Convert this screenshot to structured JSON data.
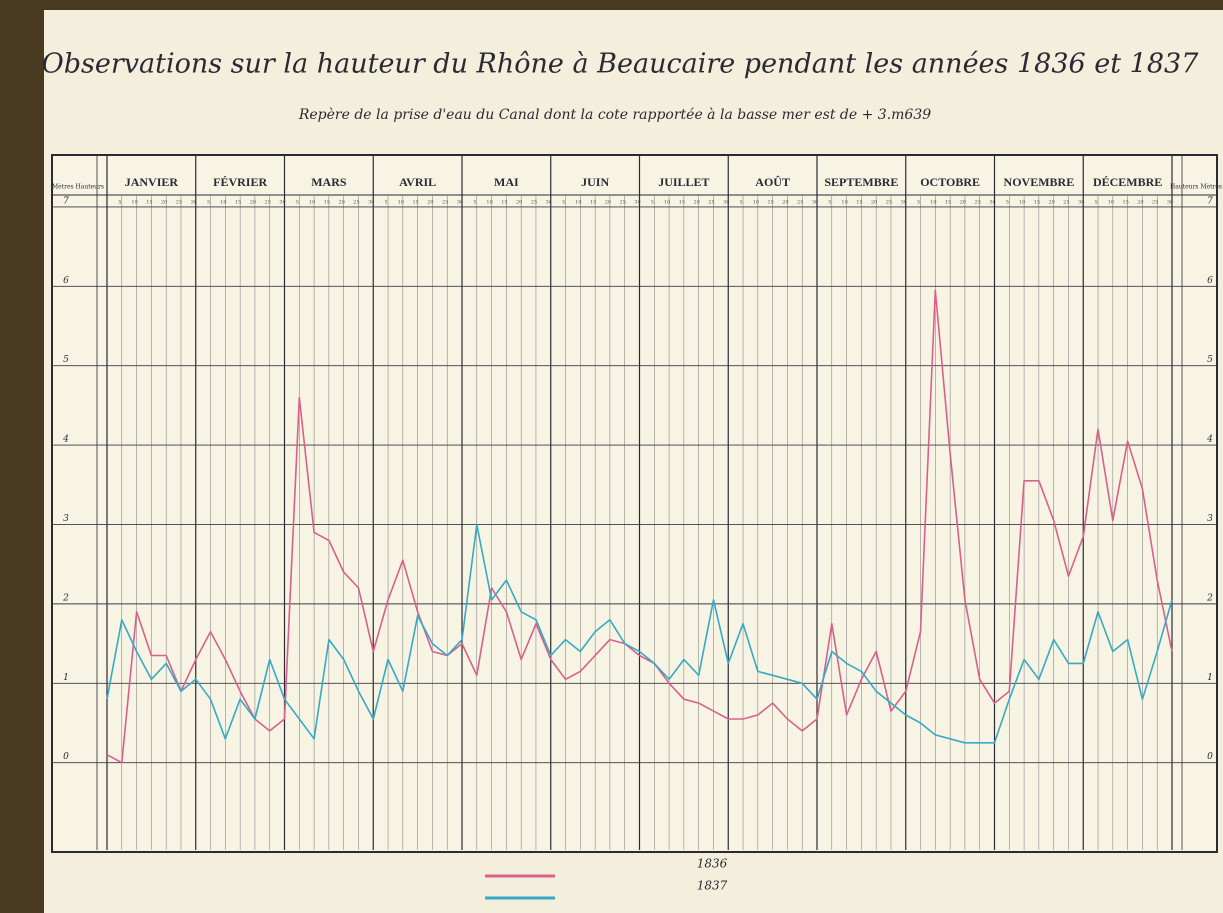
{
  "chart_data": {
    "type": "line",
    "title": "Observations sur la hauteur du Rhône à Beaucaire pendant les années 1836 et 1837",
    "subtitle": "Repère de la prise d'eau du Canal dont la cote rapportée à la basse mer est de + 3.m639",
    "y_axis_label_left": "Mètres Hauteurs",
    "y_axis_label_right": "Hauteurs Mètres",
    "x": [
      0,
      5,
      10,
      15,
      20,
      25,
      30,
      35,
      40,
      45,
      50,
      55,
      60,
      65,
      70,
      75,
      80,
      85,
      90,
      95,
      100,
      105,
      110,
      115,
      120,
      125,
      130,
      135,
      140,
      145,
      150,
      155,
      160,
      165,
      170,
      175,
      180,
      185,
      190,
      195,
      200,
      205,
      210,
      215,
      220,
      225,
      230,
      235,
      240,
      245,
      250,
      255,
      260,
      265,
      270,
      275,
      280,
      285,
      290,
      295,
      300,
      305,
      310,
      315,
      320,
      325,
      330,
      335,
      340,
      345,
      350,
      355,
      360
    ],
    "xlim": [
      0,
      360
    ],
    "xticks": [
      {
        "value": 15,
        "label": "JANVIER"
      },
      {
        "value": 45,
        "label": "FÉVRIER"
      },
      {
        "value": 75,
        "label": "MARS"
      },
      {
        "value": 105,
        "label": "AVRIL"
      },
      {
        "value": 135,
        "label": "MAI"
      },
      {
        "value": 165,
        "label": "JUIN"
      },
      {
        "value": 195,
        "label": "JUILLET"
      },
      {
        "value": 225,
        "label": "AOÛT"
      },
      {
        "value": 255,
        "label": "SEPTEMBRE"
      },
      {
        "value": 285,
        "label": "OCTOBRE"
      },
      {
        "value": 315,
        "label": "NOVEMBRE"
      },
      {
        "value": 345,
        "label": "DÉCEMBRE"
      }
    ],
    "day_ticks": [
      5,
      10,
      15,
      20,
      25,
      30
    ],
    "ylim": [
      -1.1,
      7.15
    ],
    "yticks": [
      0,
      1,
      2,
      3,
      4,
      5,
      6,
      7
    ],
    "grid": true,
    "legend": "bottom",
    "series": [
      {
        "name": "1836",
        "color": "#d9608a",
        "values": [
          0.1,
          0.0,
          1.9,
          1.35,
          1.35,
          0.9,
          1.3,
          1.65,
          1.3,
          0.9,
          0.55,
          0.4,
          0.55,
          4.6,
          2.9,
          2.8,
          2.4,
          2.2,
          1.4,
          2.05,
          2.55,
          1.9,
          1.4,
          1.35,
          1.5,
          1.1,
          2.2,
          1.9,
          1.3,
          1.75,
          1.3,
          1.05,
          1.15,
          1.35,
          1.55,
          1.5,
          1.35,
          1.25,
          1.0,
          0.8,
          0.75,
          0.65,
          0.55,
          0.55,
          0.6,
          0.75,
          0.55,
          0.4,
          0.55,
          1.75,
          0.6,
          1.05,
          1.4,
          0.65,
          0.9,
          1.65,
          5.95,
          3.9,
          2.05,
          1.05,
          0.75,
          0.9,
          3.55,
          3.55,
          3.05,
          2.35,
          2.85,
          4.2,
          3.05,
          4.05,
          3.45,
          2.3,
          1.4
        ]
      },
      {
        "name": "1837",
        "color": "#35aac6",
        "values": [
          0.8,
          1.8,
          1.4,
          1.05,
          1.25,
          0.9,
          1.05,
          0.8,
          0.3,
          0.8,
          0.55,
          1.3,
          0.8,
          0.55,
          0.3,
          1.55,
          1.3,
          0.9,
          0.55,
          1.3,
          0.9,
          1.85,
          1.5,
          1.35,
          1.55,
          3.0,
          2.05,
          2.3,
          1.9,
          1.8,
          1.35,
          1.55,
          1.4,
          1.65,
          1.8,
          1.5,
          1.4,
          1.25,
          1.05,
          1.3,
          1.1,
          2.05,
          1.25,
          1.75,
          1.15,
          1.1,
          1.05,
          1.0,
          0.8,
          1.4,
          1.25,
          1.15,
          0.9,
          0.75,
          0.6,
          0.5,
          0.35,
          0.3,
          0.25,
          0.25,
          0.25,
          0.8,
          1.3,
          1.05,
          1.55,
          1.25,
          1.25,
          1.9,
          1.4,
          1.55,
          0.8,
          1.4,
          2.05
        ]
      }
    ]
  }
}
